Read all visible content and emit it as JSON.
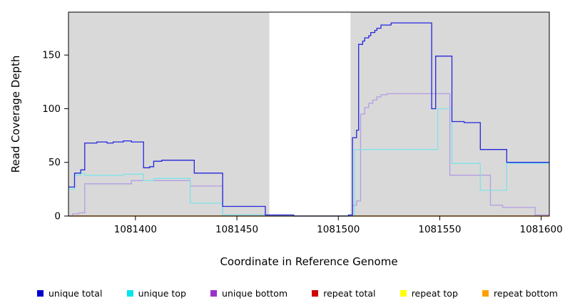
{
  "axes": {
    "x_label": "Coordinate in Reference Genome",
    "y_label": "Read Coverage Depth"
  },
  "chart_data": {
    "type": "line",
    "subtype": "step-after",
    "title": "",
    "xlabel": "Coordinate in Reference Genome",
    "ylabel": "Read Coverage Depth",
    "xlim": [
      1081367,
      1081604
    ],
    "ylim": [
      0,
      190
    ],
    "x_ticks": [
      1081400,
      1081450,
      1081500,
      1081550,
      1081600
    ],
    "y_ticks": [
      0,
      50,
      100,
      150
    ],
    "grid": false,
    "legend_position": "bottom",
    "figure_background": "#ffffff",
    "plot_background": "#d9d9d9",
    "unmasked_band": {
      "x_start": 1081466,
      "x_end": 1081506,
      "color": "#ffffff"
    },
    "series": [
      {
        "name": "repeat total",
        "line_color": "#cd0000",
        "legend_color": "#cd0000",
        "points": [
          [
            1081367,
            0
          ]
        ]
      },
      {
        "name": "repeat top",
        "line_color": "#ffff00",
        "legend_color": "#ffff00",
        "points": [
          [
            1081367,
            0
          ]
        ]
      },
      {
        "name": "repeat bottom",
        "line_color": "#ff9d33",
        "legend_color": "#ffa000",
        "points": [
          [
            1081367,
            0
          ]
        ]
      },
      {
        "name": "unique bottom",
        "line_color": "#b49de4",
        "legend_color": "#9932cc",
        "points": [
          [
            1081367,
            0
          ],
          [
            1081369,
            2
          ],
          [
            1081372,
            3
          ],
          [
            1081375,
            30
          ],
          [
            1081398,
            33
          ],
          [
            1081427,
            28
          ],
          [
            1081443,
            1
          ],
          [
            1081466,
            0
          ],
          [
            1081507,
            10
          ],
          [
            1081509,
            14
          ],
          [
            1081511,
            95
          ],
          [
            1081513,
            101
          ],
          [
            1081515,
            105
          ],
          [
            1081517,
            108
          ],
          [
            1081519,
            111
          ],
          [
            1081521,
            113
          ],
          [
            1081524,
            114
          ],
          [
            1081555,
            38
          ],
          [
            1081575,
            10
          ],
          [
            1081581,
            8
          ],
          [
            1081597,
            1
          ]
        ]
      },
      {
        "name": "unique top",
        "line_color": "#7fe3e8",
        "legend_color": "#00e5ee",
        "points": [
          [
            1081367,
            25
          ],
          [
            1081370,
            38
          ],
          [
            1081373,
            40
          ],
          [
            1081375,
            38
          ],
          [
            1081394,
            39
          ],
          [
            1081404,
            33
          ],
          [
            1081409,
            35
          ],
          [
            1081427,
            12
          ],
          [
            1081443,
            1
          ],
          [
            1081466,
            0
          ],
          [
            1081508,
            62
          ],
          [
            1081549,
            100
          ],
          [
            1081556,
            49
          ],
          [
            1081570,
            24
          ],
          [
            1081583,
            49
          ]
        ]
      },
      {
        "name": "unique total",
        "line_color": "#2525dd",
        "legend_color": "#0000cd",
        "points": [
          [
            1081367,
            27
          ],
          [
            1081370,
            40
          ],
          [
            1081373,
            43
          ],
          [
            1081375,
            68
          ],
          [
            1081381,
            69
          ],
          [
            1081386,
            68
          ],
          [
            1081389,
            69
          ],
          [
            1081394,
            70
          ],
          [
            1081398,
            69
          ],
          [
            1081404,
            45
          ],
          [
            1081407,
            46
          ],
          [
            1081409,
            51
          ],
          [
            1081413,
            52
          ],
          [
            1081429,
            40
          ],
          [
            1081443,
            9
          ],
          [
            1081464,
            1
          ],
          [
            1081478,
            0
          ],
          [
            1081505,
            1
          ],
          [
            1081507,
            73
          ],
          [
            1081509,
            80
          ],
          [
            1081510,
            160
          ],
          [
            1081512,
            163
          ],
          [
            1081513,
            166
          ],
          [
            1081515,
            168
          ],
          [
            1081516,
            171
          ],
          [
            1081518,
            173
          ],
          [
            1081519,
            175
          ],
          [
            1081521,
            178
          ],
          [
            1081526,
            180
          ],
          [
            1081546,
            100
          ],
          [
            1081548,
            149
          ],
          [
            1081556,
            88
          ],
          [
            1081562,
            87
          ],
          [
            1081570,
            62
          ],
          [
            1081583,
            50
          ]
        ]
      }
    ],
    "legend_order": [
      "unique total",
      "unique top",
      "unique bottom",
      "repeat total",
      "repeat top",
      "repeat bottom"
    ]
  }
}
